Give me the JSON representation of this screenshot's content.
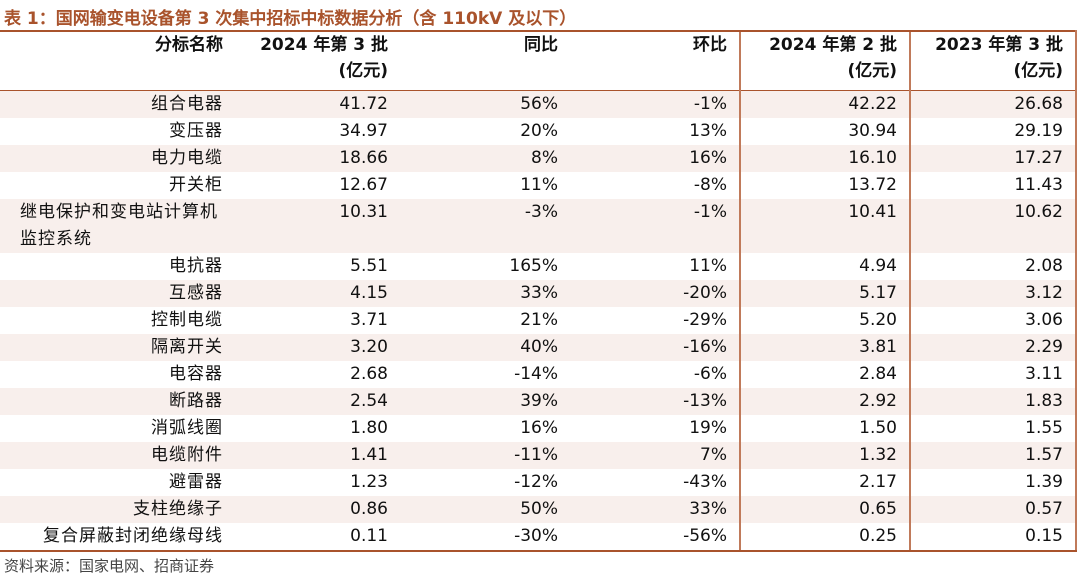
{
  "title": "表 1：国网输变电设备第 3 次集中招标中标数据分析（含 110kV 及以下）",
  "table": {
    "header": [
      {
        "label": "分标名称"
      },
      {
        "label": "2024 年第 3 批",
        "unit": "(亿元)"
      },
      {
        "label": "同比"
      },
      {
        "label": "环比"
      },
      {
        "label": "2024 年第 2 批",
        "unit": "(亿元)"
      },
      {
        "label": "2023 年第 3 批",
        "unit": "(亿元)"
      }
    ],
    "rows": [
      [
        "组合电器",
        "41.72",
        "56%",
        "-1%",
        "42.22",
        "26.68"
      ],
      [
        "变压器",
        "34.97",
        "20%",
        "13%",
        "30.94",
        "29.19"
      ],
      [
        "电力电缆",
        "18.66",
        "8%",
        "16%",
        "16.10",
        "17.27"
      ],
      [
        "开关柜",
        "12.67",
        "11%",
        "-8%",
        "13.72",
        "11.43"
      ],
      [
        "继电保护和变电站计算机监控系统",
        "10.31",
        "-3%",
        "-1%",
        "10.41",
        "10.62"
      ],
      [
        "电抗器",
        "5.51",
        "165%",
        "11%",
        "4.94",
        "2.08"
      ],
      [
        "互感器",
        "4.15",
        "33%",
        "-20%",
        "5.17",
        "3.12"
      ],
      [
        "控制电缆",
        "3.71",
        "21%",
        "-29%",
        "5.20",
        "3.06"
      ],
      [
        "隔离开关",
        "3.20",
        "40%",
        "-16%",
        "3.81",
        "2.29"
      ],
      [
        "电容器",
        "2.68",
        "-14%",
        "-6%",
        "2.84",
        "3.11"
      ],
      [
        "断路器",
        "2.54",
        "39%",
        "-13%",
        "2.92",
        "1.83"
      ],
      [
        "消弧线圈",
        "1.80",
        "16%",
        "19%",
        "1.50",
        "1.55"
      ],
      [
        "电缆附件",
        "1.41",
        "-11%",
        "7%",
        "1.32",
        "1.57"
      ],
      [
        "避雷器",
        "1.23",
        "-12%",
        "-43%",
        "2.17",
        "1.39"
      ],
      [
        "支柱绝缘子",
        "0.86",
        "50%",
        "33%",
        "0.65",
        "0.57"
      ],
      [
        "复合屏蔽封闭绝缘母线",
        "0.11",
        "-30%",
        "-56%",
        "0.25",
        "0.15"
      ]
    ]
  },
  "source": "资料来源：国家电网、招商证券"
}
